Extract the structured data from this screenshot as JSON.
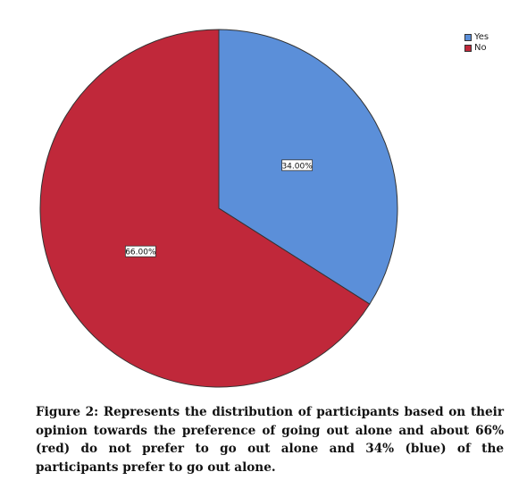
{
  "chart_data": {
    "type": "pie",
    "title": "",
    "categories": [
      "Yes",
      "No"
    ],
    "values": [
      34.0,
      66.0
    ],
    "data_labels": [
      "34.00%",
      "66.00%"
    ],
    "colors": [
      "#5b8fd9",
      "#c0283a"
    ],
    "legend_position": "top-right",
    "start_angle": "12 o'clock, clockwise"
  },
  "legend": {
    "items": [
      {
        "label": "Yes",
        "color": "#5b8fd9"
      },
      {
        "label": "No",
        "color": "#c0283a"
      }
    ]
  },
  "caption": {
    "text": "Figure 2: Represents the distribution of participants based on their opinion towards the  preference of going out alone and about 66% (red) do not prefer to go out alone  and 34% (blue) of the participants  prefer to go out alone."
  }
}
